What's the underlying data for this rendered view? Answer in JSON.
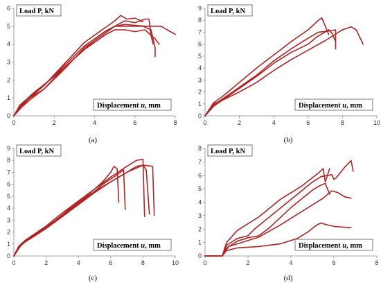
{
  "figure": {
    "series_color": "#b22222",
    "axis_color": "#888888"
  },
  "chart_data": [
    {
      "type": "line",
      "caption": "(a)",
      "ylabel": "Load P, kN",
      "xlabel_prefix": "Displacement ",
      "xlabel_var": "u",
      "xlabel_suffix": ", mm",
      "xlim": [
        0,
        8
      ],
      "ylim": [
        0,
        6
      ],
      "xticks": [
        0,
        2,
        4,
        6,
        8
      ],
      "yticks": [
        0,
        1,
        2,
        3,
        4,
        5,
        6
      ],
      "grid": false,
      "series": [
        {
          "points": [
            [
              0,
              0
            ],
            [
              0.3,
              0.5
            ],
            [
              0.6,
              0.9
            ],
            [
              1,
              1.3
            ],
            [
              2,
              2.2
            ],
            [
              3,
              3.2
            ],
            [
              4,
              4.2
            ],
            [
              4.5,
              4.6
            ],
            [
              5,
              5.0
            ],
            [
              5.5,
              5.3
            ],
            [
              6,
              5.2
            ],
            [
              6.5,
              5.4
            ],
            [
              6.7,
              5.4
            ],
            [
              6.8,
              4.5
            ],
            [
              6.9,
              4.0
            ]
          ]
        },
        {
          "points": [
            [
              0,
              0
            ],
            [
              0.4,
              0.5
            ],
            [
              0.8,
              0.9
            ],
            [
              1.5,
              1.5
            ],
            [
              2.5,
              2.6
            ],
            [
              3.5,
              3.8
            ],
            [
              4.5,
              4.6
            ],
            [
              5,
              5.0
            ],
            [
              5.5,
              5.0
            ],
            [
              6.4,
              5.0
            ],
            [
              6.8,
              4.8
            ],
            [
              7.0,
              3.8
            ],
            [
              7.0,
              3.3
            ]
          ]
        },
        {
          "points": [
            [
              0,
              0
            ],
            [
              0.3,
              0.4
            ],
            [
              0.7,
              0.9
            ],
            [
              1.5,
              1.7
            ],
            [
              2.5,
              2.8
            ],
            [
              3.5,
              3.9
            ],
            [
              4.5,
              4.7
            ],
            [
              5.0,
              5.0
            ],
            [
              5.5,
              5.1
            ],
            [
              6.5,
              5.0
            ],
            [
              7.3,
              5.0
            ],
            [
              7.6,
              4.8
            ],
            [
              8.0,
              4.55
            ]
          ]
        },
        {
          "points": [
            [
              0,
              0
            ],
            [
              0.3,
              0.5
            ],
            [
              0.8,
              1.0
            ],
            [
              1.5,
              1.5
            ],
            [
              2.5,
              2.7
            ],
            [
              3.5,
              3.7
            ],
            [
              4.5,
              4.5
            ],
            [
              5.0,
              4.8
            ],
            [
              5.5,
              4.8
            ],
            [
              6.0,
              4.7
            ],
            [
              6.5,
              4.8
            ],
            [
              7.0,
              4.3
            ],
            [
              7.2,
              4.0
            ]
          ]
        },
        {
          "points": [
            [
              0,
              0
            ],
            [
              0.3,
              0.6
            ],
            [
              0.7,
              1.0
            ],
            [
              1.5,
              1.7
            ],
            [
              2.5,
              2.9
            ],
            [
              3.5,
              4.1
            ],
            [
              4.5,
              4.9
            ],
            [
              5.0,
              5.3
            ],
            [
              5.3,
              5.6
            ],
            [
              5.6,
              5.4
            ],
            [
              6.0,
              5.45
            ],
            [
              6.4,
              5.25
            ]
          ]
        }
      ]
    },
    {
      "type": "line",
      "caption": "(b)",
      "ylabel": "Load P, kN",
      "xlabel_prefix": "Displacement ",
      "xlabel_var": "u",
      "xlabel_suffix": ", mm",
      "xlim": [
        0,
        10
      ],
      "ylim": [
        0,
        9
      ],
      "xticks": [
        0,
        2,
        4,
        6,
        8,
        10
      ],
      "yticks": [
        0,
        1,
        2,
        3,
        4,
        5,
        6,
        7,
        8,
        9
      ],
      "grid": false,
      "series": [
        {
          "points": [
            [
              0,
              0
            ],
            [
              0.5,
              0.9
            ],
            [
              1,
              1.4
            ],
            [
              2,
              2.4
            ],
            [
              3,
              3.4
            ],
            [
              4,
              4.6
            ],
            [
              5,
              5.6
            ],
            [
              6,
              6.5
            ],
            [
              6.6,
              7.0
            ],
            [
              7.2,
              7.1
            ],
            [
              7.6,
              7.2
            ],
            [
              7.6,
              5.6
            ]
          ]
        },
        {
          "points": [
            [
              0,
              0
            ],
            [
              0.5,
              1.1
            ],
            [
              1,
              1.6
            ],
            [
              2,
              2.8
            ],
            [
              3,
              4.0
            ],
            [
              4,
              5.1
            ],
            [
              5,
              6.2
            ],
            [
              6,
              7.2
            ],
            [
              6.6,
              8.0
            ],
            [
              6.8,
              8.2
            ],
            [
              7.0,
              7.5
            ],
            [
              7.2,
              6.8
            ]
          ]
        },
        {
          "points": [
            [
              0,
              0
            ],
            [
              0.5,
              1.0
            ],
            [
              1,
              1.3
            ],
            [
              2,
              2.0
            ],
            [
              3,
              2.8
            ],
            [
              4,
              3.8
            ],
            [
              5,
              4.7
            ],
            [
              6,
              5.5
            ],
            [
              7,
              6.3
            ],
            [
              8,
              7.2
            ],
            [
              8.5,
              7.45
            ],
            [
              8.8,
              7.2
            ],
            [
              9.0,
              6.6
            ],
            [
              9.2,
              6.0
            ]
          ]
        },
        {
          "points": [
            [
              0,
              0
            ],
            [
              0.5,
              0.8
            ],
            [
              1,
              1.3
            ],
            [
              2,
              2.3
            ],
            [
              3,
              3.3
            ],
            [
              4,
              4.4
            ],
            [
              5,
              5.3
            ],
            [
              6,
              6.0
            ],
            [
              6.5,
              6.6
            ],
            [
              7.2,
              7.2
            ],
            [
              7.4,
              6.9
            ],
            [
              7.6,
              6.2
            ]
          ]
        }
      ]
    },
    {
      "type": "line",
      "caption": "(c)",
      "ylabel": "Load P, kN",
      "xlabel_prefix": "Displacement ",
      "xlabel_var": "u",
      "xlabel_suffix": ", mm",
      "xlim": [
        0,
        10
      ],
      "ylim": [
        0,
        9
      ],
      "xticks": [
        0,
        2,
        4,
        6,
        8,
        10
      ],
      "yticks": [
        0,
        1,
        2,
        3,
        4,
        5,
        6,
        7,
        8,
        9
      ],
      "grid": false,
      "series": [
        {
          "points": [
            [
              0,
              0
            ],
            [
              0.3,
              0.8
            ],
            [
              0.7,
              1.3
            ],
            [
              1.5,
              2.0
            ],
            [
              2.5,
              2.9
            ],
            [
              3.5,
              4.0
            ],
            [
              4.5,
              5.0
            ],
            [
              5.5,
              6.2
            ],
            [
              6.0,
              7.0
            ],
            [
              6.2,
              7.5
            ],
            [
              6.4,
              7.3
            ],
            [
              6.5,
              4.5
            ]
          ]
        },
        {
          "points": [
            [
              0,
              0
            ],
            [
              0.3,
              0.7
            ],
            [
              0.8,
              1.3
            ],
            [
              1.5,
              1.9
            ],
            [
              2.5,
              2.8
            ],
            [
              3.5,
              3.8
            ],
            [
              4.5,
              4.8
            ],
            [
              5.5,
              6.0
            ],
            [
              6.5,
              6.9
            ],
            [
              6.8,
              7.2
            ],
            [
              6.9,
              3.9
            ]
          ]
        },
        {
          "points": [
            [
              0,
              0
            ],
            [
              0.4,
              0.9
            ],
            [
              1.0,
              1.5
            ],
            [
              2,
              2.4
            ],
            [
              3,
              3.4
            ],
            [
              4,
              4.4
            ],
            [
              5,
              5.4
            ],
            [
              6,
              6.2
            ],
            [
              7,
              7.0
            ],
            [
              7.6,
              7.5
            ],
            [
              8.0,
              7.6
            ],
            [
              8.2,
              7.2
            ],
            [
              8.4,
              3.5
            ]
          ]
        },
        {
          "points": [
            [
              0,
              0
            ],
            [
              0.3,
              0.8
            ],
            [
              0.8,
              1.4
            ],
            [
              2,
              2.5
            ],
            [
              3,
              3.6
            ],
            [
              4,
              4.6
            ],
            [
              5,
              5.6
            ],
            [
              6,
              6.6
            ],
            [
              7,
              7.5
            ],
            [
              7.6,
              8.0
            ],
            [
              8.0,
              8.1
            ],
            [
              8.1,
              3.3
            ]
          ]
        },
        {
          "points": [
            [
              0,
              0
            ],
            [
              0.5,
              1.0
            ],
            [
              1.2,
              1.6
            ],
            [
              2,
              2.3
            ],
            [
              3,
              3.3
            ],
            [
              4,
              4.3
            ],
            [
              5,
              5.3
            ],
            [
              6,
              6.2
            ],
            [
              7,
              7.0
            ],
            [
              8.0,
              7.6
            ],
            [
              8.6,
              7.5
            ],
            [
              8.7,
              3.4
            ]
          ]
        }
      ]
    },
    {
      "type": "line",
      "caption": "(d)",
      "ylabel": "Load P, kN",
      "xlabel_prefix": "Displacement ",
      "xlabel_var": "u",
      "xlabel_suffix": ", mm",
      "xlim": [
        0,
        8
      ],
      "ylim": [
        0,
        8
      ],
      "xticks": [
        0,
        2,
        4,
        6,
        8
      ],
      "yticks": [
        0,
        1,
        2,
        3,
        4,
        5,
        6,
        7,
        8
      ],
      "grid": false,
      "series": [
        {
          "points": [
            [
              0,
              0
            ],
            [
              0.8,
              0
            ],
            [
              1.0,
              0.4
            ],
            [
              1.5,
              0.6
            ],
            [
              2.5,
              0.7
            ],
            [
              3.5,
              0.9
            ],
            [
              4.3,
              1.3
            ],
            [
              4.8,
              1.8
            ],
            [
              5.2,
              2.3
            ],
            [
              5.4,
              2.45
            ],
            [
              5.6,
              2.35
            ],
            [
              6.0,
              2.2
            ],
            [
              6.8,
              2.1
            ]
          ]
        },
        {
          "points": [
            [
              0,
              0
            ],
            [
              0.8,
              0
            ],
            [
              1.1,
              0.7
            ],
            [
              1.5,
              0.9
            ],
            [
              2.5,
              1.4
            ],
            [
              3.5,
              2.3
            ],
            [
              4.5,
              3.3
            ],
            [
              5.5,
              4.3
            ],
            [
              5.9,
              4.85
            ],
            [
              6.2,
              4.7
            ],
            [
              6.5,
              4.4
            ],
            [
              6.8,
              4.3
            ]
          ]
        },
        {
          "points": [
            [
              0,
              0
            ],
            [
              0.8,
              0
            ],
            [
              1.0,
              0.8
            ],
            [
              1.5,
              1.3
            ],
            [
              2.0,
              1.5
            ],
            [
              2.3,
              2.0
            ],
            [
              3,
              2.9
            ],
            [
              4,
              4.2
            ],
            [
              5,
              5.5
            ],
            [
              5.4,
              5.9
            ],
            [
              5.9,
              6.05
            ],
            [
              6.0,
              5.7
            ],
            [
              6.1,
              5.8
            ],
            [
              6.5,
              6.6
            ],
            [
              6.8,
              7.1
            ],
            [
              6.9,
              6.3
            ]
          ]
        },
        {
          "points": [
            [
              0,
              0
            ],
            [
              0.8,
              0
            ],
            [
              1.0,
              0.6
            ],
            [
              1.5,
              1.1
            ],
            [
              2.0,
              1.35
            ],
            [
              2.5,
              1.5
            ],
            [
              3,
              2.1
            ],
            [
              4,
              3.6
            ],
            [
              5,
              4.9
            ],
            [
              5.3,
              5.2
            ],
            [
              5.6,
              5.4
            ],
            [
              5.8,
              4.6
            ]
          ]
        },
        {
          "points": [
            [
              0,
              0
            ],
            [
              0.8,
              0
            ],
            [
              1.0,
              1.0
            ],
            [
              1.5,
              1.9
            ],
            [
              2.5,
              2.9
            ],
            [
              3.5,
              4.2
            ],
            [
              4.5,
              5.2
            ],
            [
              5.3,
              6.2
            ],
            [
              5.5,
              6.5
            ],
            [
              5.6,
              5.5
            ],
            [
              5.8,
              6.5
            ]
          ]
        }
      ]
    }
  ]
}
